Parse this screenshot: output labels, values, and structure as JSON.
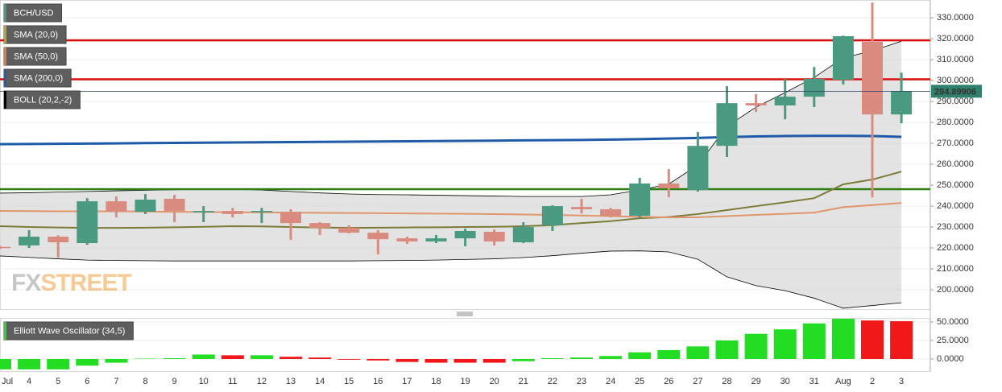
{
  "chart_data": [
    {
      "type": "candlestick",
      "name": "BCH/USD",
      "up_color": "#4a9a82",
      "down_color": "#d98b7f",
      "open": [
        220.5,
        221.2,
        225.4,
        222.3,
        242.3,
        237.3,
        243.5,
        237.0,
        237.7,
        237.3,
        237.3,
        231.9,
        229.6,
        227.3,
        224.6,
        223.1,
        224.6,
        227.7,
        222.7,
        230.8,
        239.6,
        238.5,
        235.4,
        250.8,
        247.7,
        268.8,
        289.2,
        288.1,
        292.3,
        300.4,
        318.5,
        283.8
      ],
      "high": [
        221.0,
        228.5,
        226.0,
        243.8,
        244.6,
        245.8,
        245.4,
        240.0,
        239.2,
        239.2,
        238.5,
        232.3,
        230.8,
        228.5,
        225.4,
        226.2,
        229.2,
        228.8,
        232.3,
        240.4,
        243.5,
        239.2,
        253.5,
        257.7,
        275.4,
        297.3,
        293.5,
        300.8,
        306.5,
        321.5,
        337.3,
        303.8
      ],
      "low": [
        219.5,
        220.0,
        215.4,
        221.5,
        234.6,
        236.2,
        232.3,
        232.3,
        234.6,
        231.9,
        223.8,
        226.2,
        226.9,
        216.9,
        221.9,
        222.3,
        220.8,
        221.2,
        222.3,
        228.1,
        236.5,
        234.6,
        234.2,
        244.2,
        246.9,
        263.5,
        285.0,
        281.5,
        287.3,
        298.1,
        244.2,
        279.6
      ],
      "close": [
        220.0,
        225.4,
        222.7,
        242.3,
        237.3,
        243.1,
        237.7,
        237.7,
        236.2,
        237.7,
        231.9,
        229.6,
        227.3,
        224.2,
        223.1,
        224.6,
        228.1,
        223.1,
        230.0,
        240.0,
        238.5,
        235.4,
        250.8,
        248.5,
        268.8,
        289.2,
        288.1,
        292.3,
        300.8,
        321.2,
        283.8,
        294.9
      ],
      "ylim": [
        190.4,
        338.5
      ],
      "yticks": [
        {
          "value": 200,
          "label": "200.0000"
        },
        {
          "value": 210,
          "label": "210.0000"
        },
        {
          "value": 220,
          "label": "220.0000"
        },
        {
          "value": 230,
          "label": "230.0000"
        },
        {
          "value": 240,
          "label": "240.0000"
        },
        {
          "value": 250,
          "label": "250.0000"
        },
        {
          "value": 260,
          "label": "260.0000"
        },
        {
          "value": 270,
          "label": "270.0000"
        },
        {
          "value": 280,
          "label": "280.0000"
        },
        {
          "value": 290,
          "label": "290.0000"
        },
        {
          "value": 300,
          "label": "300.0000"
        },
        {
          "value": 310,
          "label": "310.0000"
        },
        {
          "value": 320,
          "label": "320.0000"
        },
        {
          "value": 330,
          "label": "330.0000"
        }
      ],
      "grid": true,
      "last_price": 294.89906,
      "last_price_color": "#2f806c",
      "series": [
        {
          "name": "SMA (20,0)",
          "color": "#7d7a3a",
          "legend_color": "#b5a82a",
          "values": [
            230.4,
            230.0,
            229.8,
            229.6,
            229.6,
            229.7,
            229.9,
            230.1,
            230.4,
            230.3,
            230.0,
            229.8,
            229.6,
            229.7,
            229.8,
            229.9,
            230.0,
            230.1,
            230.4,
            230.9,
            231.9,
            232.8,
            234.2,
            234.8,
            236.2,
            238.1,
            240.0,
            241.8,
            243.8,
            250.4,
            252.7,
            256.5
          ]
        },
        {
          "name": "SMA (50,0)",
          "color": "#e0956a",
          "legend_color": "#e07b39",
          "values": [
            237.7,
            237.6,
            237.5,
            237.5,
            237.5,
            237.4,
            237.3,
            237.2,
            237.1,
            237.0,
            236.9,
            236.8,
            236.7,
            236.6,
            236.5,
            236.4,
            236.3,
            236.2,
            236.0,
            235.8,
            235.5,
            235.2,
            234.9,
            234.6,
            234.7,
            235.2,
            235.8,
            236.3,
            236.9,
            239.5,
            240.5,
            241.5
          ]
        },
        {
          "name": "SMA (200,0)",
          "color": "#1f5aa8",
          "legend_color": "#1f5fad",
          "values": [
            269.6,
            269.7,
            269.8,
            269.9,
            270.0,
            270.1,
            270.2,
            270.3,
            270.4,
            270.5,
            270.6,
            270.7,
            270.8,
            270.9,
            271.0,
            271.1,
            271.2,
            271.3,
            271.4,
            271.5,
            271.6,
            271.8,
            272.0,
            272.3,
            272.6,
            273.0,
            273.3,
            273.5,
            273.6,
            273.6,
            273.5,
            273.1
          ]
        }
      ],
      "bands": {
        "name": "BOLL (20,2,-2)",
        "color": "#000000",
        "fill": "#d9d9d9",
        "upper": [
          246.2,
          246.4,
          246.7,
          247.0,
          247.3,
          247.6,
          247.8,
          248.0,
          248.1,
          247.7,
          247.0,
          246.3,
          245.8,
          245.5,
          245.4,
          245.2,
          245.0,
          244.8,
          244.6,
          244.6,
          244.6,
          245.4,
          247.7,
          250.5,
          259.6,
          278.1,
          287.3,
          294.2,
          301.5,
          310.8,
          314.2,
          318.8
        ],
        "lower": [
          216.2,
          215.5,
          214.8,
          214.2,
          214.0,
          213.9,
          213.8,
          213.8,
          213.8,
          213.8,
          213.8,
          213.8,
          213.8,
          213.9,
          214.0,
          214.2,
          214.5,
          214.8,
          215.4,
          216.3,
          217.5,
          218.5,
          218.6,
          218.1,
          214.6,
          206.2,
          202.0,
          199.6,
          196.0,
          191.2,
          192.5,
          193.8
        ]
      },
      "levels": [
        {
          "value": 319.2,
          "color": "#d81010"
        },
        {
          "value": 300.6,
          "color": "#d81010"
        },
        {
          "value": 248.1,
          "color": "#2e7d12"
        }
      ],
      "watermark": [
        "FX",
        "STREET"
      ]
    },
    {
      "type": "bar",
      "name": "Elliott Wave Oscillator (34,5)",
      "legend_color": "#22dd22",
      "categories": [
        "Jul",
        "4",
        "5",
        "6",
        "7",
        "8",
        "9",
        "10",
        "11",
        "12",
        "13",
        "14",
        "15",
        "16",
        "17",
        "18",
        "19",
        "20",
        "21",
        "22",
        "23",
        "24",
        "25",
        "26",
        "27",
        "28",
        "29",
        "30",
        "31",
        "Aug",
        "2",
        "3"
      ],
      "values": [
        -14,
        -14,
        -14,
        -9,
        -5,
        0.5,
        1,
        6,
        5,
        5,
        3,
        2,
        -1,
        -2,
        -4,
        -5,
        -5,
        -5,
        -3,
        1,
        2,
        4,
        9,
        12,
        17,
        25,
        34,
        40,
        48,
        55,
        52,
        51
      ],
      "colors": [
        "#22dd22",
        "#22dd22",
        "#22dd22",
        "#22dd22",
        "#22dd22",
        "#22dd22",
        "#22dd22",
        "#22dd22",
        "#f01818",
        "#22dd22",
        "#f01818",
        "#f01818",
        "#f01818",
        "#f01818",
        "#f01818",
        "#f01818",
        "#f01818",
        "#f01818",
        "#22dd22",
        "#22dd22",
        "#22dd22",
        "#22dd22",
        "#22dd22",
        "#22dd22",
        "#22dd22",
        "#22dd22",
        "#22dd22",
        "#22dd22",
        "#22dd22",
        "#22dd22",
        "#f01818",
        "#f01818"
      ],
      "ylim": [
        -17.4,
        55.4
      ],
      "yticks": [
        {
          "value": 0,
          "label": "0.0000"
        },
        {
          "value": 25,
          "label": "25.0000"
        },
        {
          "value": 50,
          "label": "50.0000"
        }
      ]
    }
  ]
}
